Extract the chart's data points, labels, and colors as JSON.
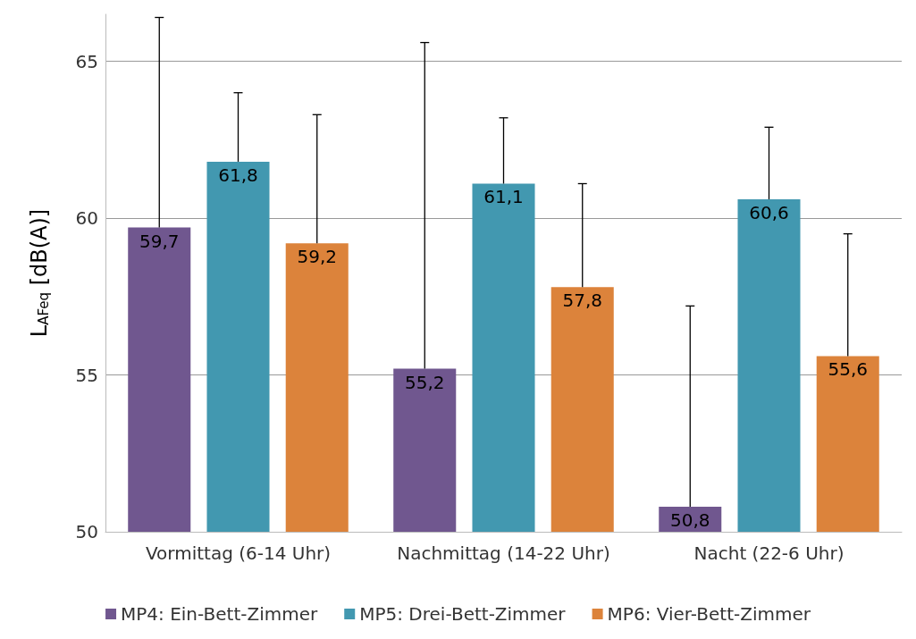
{
  "chart_data": {
    "type": "bar",
    "ylabel": "L$_{AFeq}$ [dB(A)]",
    "categories": [
      "Vormittag (6-14 Uhr)",
      "Nachmittag (14-22 Uhr)",
      "Nacht (22-6 Uhr)"
    ],
    "series": [
      {
        "name": "MP4: Ein-Bett-Zimmer",
        "color": "#70578f",
        "values": [
          59.7,
          55.2,
          50.8
        ],
        "value_labels": [
          "59,7",
          "55,2",
          "50,8"
        ],
        "errors": [
          [
            59.7,
            66.4
          ],
          [
            55.2,
            65.6
          ],
          [
            50.8,
            57.2
          ]
        ]
      },
      {
        "name": "MP5: Drei-Bett-Zimmer",
        "color": "#4298b0",
        "values": [
          61.8,
          61.1,
          60.6
        ],
        "value_labels": [
          "61,8",
          "61,1",
          "60,6"
        ],
        "errors": [
          [
            61.8,
            64.0
          ],
          [
            61.1,
            63.2
          ],
          [
            60.6,
            62.9
          ]
        ]
      },
      {
        "name": "MP6: Vier-Bett-Zimmer",
        "color": "#dc833b",
        "values": [
          59.2,
          57.8,
          55.6
        ],
        "value_labels": [
          "59,2",
          "57,8",
          "55,6"
        ],
        "errors": [
          [
            59.2,
            63.3
          ],
          [
            57.8,
            61.1
          ],
          [
            55.6,
            59.5
          ]
        ]
      }
    ],
    "ylim": [
      50,
      66.5
    ],
    "yticks": [
      50,
      55,
      60,
      65
    ],
    "grid": "y",
    "legend": "bottom"
  }
}
